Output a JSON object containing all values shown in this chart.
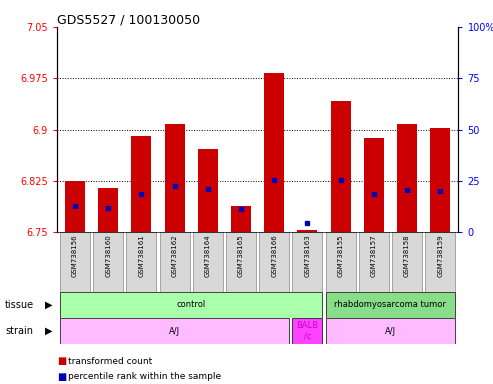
{
  "title": "GDS5527 / 100130050",
  "samples": [
    "GSM738156",
    "GSM738160",
    "GSM738161",
    "GSM738162",
    "GSM738164",
    "GSM738165",
    "GSM738166",
    "GSM738163",
    "GSM738155",
    "GSM738157",
    "GSM738158",
    "GSM738159"
  ],
  "red_values": [
    6.825,
    6.815,
    6.89,
    6.908,
    6.872,
    6.788,
    6.982,
    6.753,
    6.942,
    6.888,
    6.908,
    6.902
  ],
  "blue_values": [
    6.788,
    6.786,
    6.806,
    6.817,
    6.813,
    6.784,
    6.826,
    6.763,
    6.826,
    6.806,
    6.812,
    6.811
  ],
  "y_min": 6.75,
  "y_max": 7.05,
  "y_ticks": [
    6.75,
    6.825,
    6.9,
    6.975,
    7.05
  ],
  "y_tick_labels": [
    "6.75",
    "6.825",
    "6.9",
    "6.975",
    "7.05"
  ],
  "right_y_labels": [
    "0",
    "25",
    "50",
    "75",
    "100%"
  ],
  "bar_color": "#cc0000",
  "blue_color": "#0000bb",
  "tissue_regions": [
    {
      "text": "control",
      "start": 0,
      "end": 7,
      "color": "#aaffaa"
    },
    {
      "text": "rhabdomyosarcoma tumor",
      "start": 8,
      "end": 11,
      "color": "#88dd88"
    }
  ],
  "strain_regions": [
    {
      "text": "A/J",
      "start": 0,
      "end": 6,
      "color": "#ffbbff"
    },
    {
      "text": "BALB\n/c",
      "start": 7,
      "end": 7,
      "color": "#ff44ff"
    },
    {
      "text": "A/J",
      "start": 8,
      "end": 11,
      "color": "#ffbbff"
    }
  ],
  "tissue_row_label": "tissue",
  "strain_row_label": "strain",
  "legend_red": "transformed count",
  "legend_blue": "percentile rank within the sample",
  "grid_lines": [
    6.825,
    6.9,
    6.975
  ]
}
